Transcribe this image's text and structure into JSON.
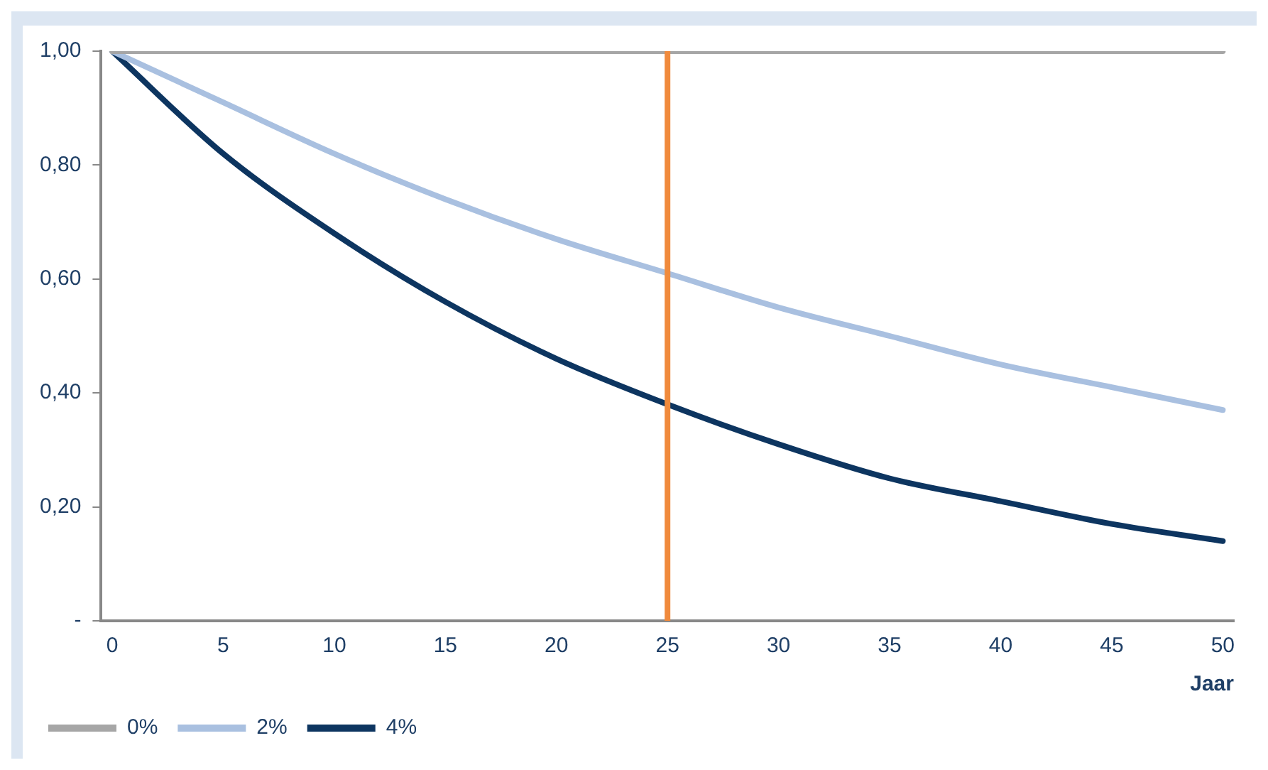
{
  "chart_data": {
    "type": "line",
    "x": [
      0,
      5,
      10,
      15,
      20,
      25,
      30,
      35,
      40,
      45,
      50
    ],
    "xlabel": "Jaar",
    "series": [
      {
        "name": "0%",
        "color": "#a6a6a6",
        "values": [
          1,
          1,
          1,
          1,
          1,
          1,
          1,
          1,
          1,
          1,
          1
        ]
      },
      {
        "name": "2%",
        "color": "#a9c0e0",
        "values": [
          1,
          0.91,
          0.82,
          0.74,
          0.67,
          0.61,
          0.55,
          0.5,
          0.45,
          0.41,
          0.37
        ]
      },
      {
        "name": "4%",
        "color": "#0d3560",
        "values": [
          1,
          0.82,
          0.68,
          0.56,
          0.46,
          0.38,
          0.31,
          0.25,
          0.21,
          0.17,
          0.14
        ]
      }
    ],
    "xlim": [
      -0.5,
      50.5
    ],
    "xticks": [
      0,
      5,
      10,
      15,
      20,
      25,
      30,
      35,
      40,
      45,
      50
    ],
    "ylim": [
      0,
      1
    ],
    "yticks": [
      {
        "value": 0,
        "label": "-"
      },
      {
        "value": 0.2,
        "label": "0,20"
      },
      {
        "value": 0.4,
        "label": "0,40"
      },
      {
        "value": 0.6,
        "label": "0,60"
      },
      {
        "value": 0.8,
        "label": "0,80"
      },
      {
        "value": 1,
        "label": "1,00"
      }
    ],
    "ref_lines": [
      {
        "axis": "x",
        "value": 25,
        "color": "#f08a3c"
      }
    ],
    "grid": false,
    "legend": "bottom left",
    "marker": "none",
    "line_style": "solid"
  }
}
